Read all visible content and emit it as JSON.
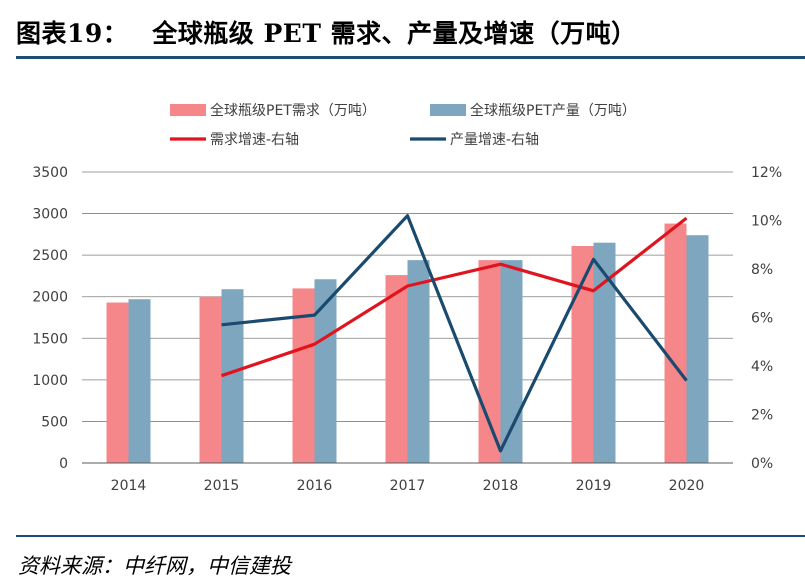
{
  "figure": {
    "number": "图表19：",
    "title": "全球瓶级 PET 需求、产量及增速（万吨）",
    "source": "资料来源：中纤网，中信建投"
  },
  "colors": {
    "demand_bar": "#f5878a",
    "production_bar": "#7fa6bf",
    "demand_growth_line": "#e0141e",
    "production_growth_line": "#1a4a6e",
    "rule": "#1f4e79",
    "grid": "#7f7f7f"
  },
  "chart_data": {
    "type": "bar",
    "categories": [
      "2014",
      "2015",
      "2016",
      "2017",
      "2018",
      "2019",
      "2020"
    ],
    "series": [
      {
        "name": "全球瓶级PET需求（万吨）",
        "kind": "bar",
        "axis": "left",
        "values": [
          1930,
          2000,
          2100,
          2260,
          2440,
          2610,
          2880
        ]
      },
      {
        "name": "全球瓶级PET产量（万吨）",
        "kind": "bar",
        "axis": "left",
        "values": [
          1970,
          2090,
          2210,
          2440,
          2440,
          2650,
          2740
        ]
      }
    ],
    "line_series": [
      {
        "name": "需求增速-右轴",
        "kind": "line",
        "axis": "right",
        "values": [
          null,
          3.6,
          4.9,
          7.3,
          8.2,
          7.1,
          10.1
        ]
      },
      {
        "name": "产量增速-右轴",
        "kind": "line",
        "axis": "right",
        "values": [
          null,
          5.7,
          6.1,
          10.2,
          0.5,
          8.4,
          3.4
        ]
      }
    ],
    "left_axis": {
      "ylim": [
        0,
        3500
      ],
      "ticks": [
        "0",
        "500",
        "1000",
        "1500",
        "2000",
        "2500",
        "3000",
        "3500"
      ]
    },
    "right_axis": {
      "ylim": [
        0,
        12
      ],
      "ticks": [
        "0%",
        "2%",
        "4%",
        "6%",
        "8%",
        "10%",
        "12%"
      ]
    },
    "grid": true,
    "legend_position": "top"
  }
}
